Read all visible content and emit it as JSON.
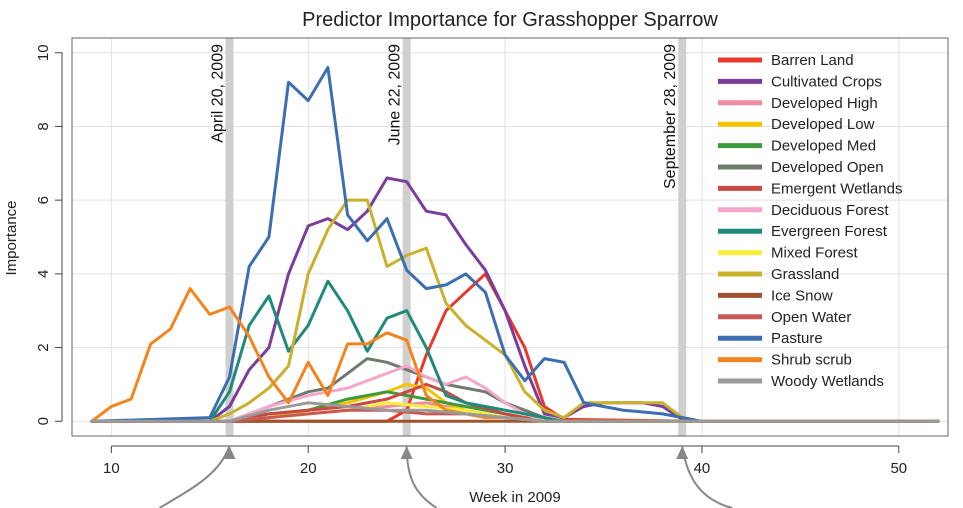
{
  "chart_data": {
    "type": "line",
    "title": "Predictor Importance for Grasshopper Sparrow",
    "xlabel": "Week in 2009",
    "ylabel": "Importance",
    "xlim": [
      8,
      52.5
    ],
    "ylim": [
      -0.4,
      10.4
    ],
    "xticks": [
      10,
      20,
      30,
      40,
      50
    ],
    "yticks": [
      0,
      2,
      4,
      6,
      8,
      10
    ],
    "grid": true,
    "legend_position": "top-right",
    "annotations": [
      {
        "label": "April 20, 2009",
        "x": 16
      },
      {
        "label": "June 22, 2009",
        "x": 25
      },
      {
        "label": "September 28, 2009",
        "x": 39
      }
    ],
    "series": [
      {
        "name": "Barren Land",
        "color": "#e8372b",
        "x": [
          9,
          15,
          16,
          20,
          24,
          25,
          26,
          27,
          28,
          29,
          30,
          31,
          32,
          33,
          40,
          52
        ],
        "y": [
          0,
          0,
          0,
          0,
          0,
          0.3,
          1.8,
          3.0,
          3.5,
          4.0,
          3.0,
          2.0,
          0.4,
          0.05,
          0,
          0
        ]
      },
      {
        "name": "Cultivated Crops",
        "color": "#7b3d9a",
        "x": [
          9,
          15,
          16,
          17,
          18,
          19,
          20,
          21,
          22,
          23,
          24,
          25,
          26,
          27,
          28,
          29,
          30,
          31,
          32,
          33,
          34,
          35,
          36,
          37,
          38,
          39,
          40,
          52
        ],
        "y": [
          0,
          0,
          0.4,
          1.4,
          2.0,
          4.0,
          5.3,
          5.5,
          5.2,
          5.7,
          6.6,
          6.5,
          5.7,
          5.6,
          4.8,
          4.1,
          3.0,
          1.5,
          0.2,
          0.1,
          0.4,
          0.5,
          0.5,
          0.5,
          0.4,
          0.05,
          0,
          0
        ]
      },
      {
        "name": "Developed High",
        "color": "#f08ca0",
        "x": [
          9,
          16,
          18,
          20,
          22,
          24,
          26,
          28,
          30,
          32,
          52
        ],
        "y": [
          0,
          0,
          0.1,
          0.2,
          0.3,
          0.4,
          0.5,
          0.3,
          0.1,
          0,
          0
        ]
      },
      {
        "name": "Developed Low",
        "color": "#f5c400",
        "x": [
          9,
          16,
          18,
          20,
          22,
          24,
          25,
          26,
          27,
          28,
          30,
          32,
          52
        ],
        "y": [
          0,
          0,
          0.1,
          0.3,
          0.5,
          0.8,
          1.0,
          0.9,
          0.5,
          0.3,
          0.1,
          0,
          0
        ]
      },
      {
        "name": "Developed Med",
        "color": "#3d9b3d",
        "x": [
          9,
          16,
          18,
          20,
          22,
          24,
          26,
          28,
          30,
          32,
          52
        ],
        "y": [
          0,
          0,
          0.2,
          0.3,
          0.6,
          0.8,
          0.6,
          0.4,
          0.2,
          0,
          0
        ]
      },
      {
        "name": "Developed Open",
        "color": "#6e7b6e",
        "x": [
          9,
          16,
          18,
          20,
          21,
          22,
          23,
          24,
          25,
          26,
          27,
          28,
          29,
          30,
          31,
          32,
          33,
          52
        ],
        "y": [
          0,
          0,
          0.4,
          0.8,
          0.9,
          1.3,
          1.7,
          1.6,
          1.4,
          1.2,
          1.0,
          0.9,
          0.8,
          0.5,
          0.3,
          0.1,
          0,
          0
        ]
      },
      {
        "name": "Emergent Wetlands",
        "color": "#c84a43",
        "x": [
          9,
          16,
          18,
          20,
          22,
          24,
          25,
          26,
          27,
          28,
          30,
          32,
          52
        ],
        "y": [
          0,
          0,
          0.2,
          0.3,
          0.4,
          0.6,
          0.8,
          1.0,
          0.8,
          0.5,
          0.2,
          0,
          0
        ]
      },
      {
        "name": "Deciduous Forest",
        "color": "#f6a6c8",
        "x": [
          9,
          16,
          18,
          20,
          22,
          23,
          24,
          25,
          26,
          27,
          28,
          29,
          30,
          31,
          32,
          52
        ],
        "y": [
          0,
          0,
          0.4,
          0.7,
          0.9,
          1.1,
          1.3,
          1.5,
          1.2,
          1.0,
          1.2,
          0.9,
          0.5,
          0.2,
          0,
          0
        ]
      },
      {
        "name": "Evergreen Forest",
        "color": "#1f8a7a",
        "x": [
          9,
          15,
          16,
          17,
          18,
          19,
          20,
          21,
          22,
          23,
          24,
          25,
          26,
          27,
          28,
          29,
          30,
          31,
          32,
          33,
          52
        ],
        "y": [
          0,
          0,
          0.8,
          2.6,
          3.4,
          1.9,
          2.6,
          3.8,
          3.0,
          1.9,
          2.8,
          3.0,
          2.0,
          0.7,
          0.5,
          0.4,
          0.3,
          0.2,
          0.1,
          0,
          0
        ]
      },
      {
        "name": "Mixed Forest",
        "color": "#f7ee3a",
        "x": [
          9,
          16,
          18,
          20,
          22,
          24,
          26,
          28,
          30,
          32,
          52
        ],
        "y": [
          0,
          0,
          0.1,
          0.2,
          0.3,
          0.5,
          0.4,
          0.3,
          0.1,
          0,
          0
        ]
      },
      {
        "name": "Grassland",
        "color": "#c9b12c",
        "x": [
          9,
          15,
          16,
          17,
          18,
          19,
          20,
          21,
          22,
          23,
          24,
          25,
          26,
          27,
          28,
          29,
          30,
          31,
          32,
          33,
          34,
          35,
          36,
          37,
          38,
          39,
          40,
          52
        ],
        "y": [
          0,
          0,
          0.2,
          0.5,
          0.9,
          1.5,
          4.0,
          5.2,
          6.0,
          6.0,
          4.2,
          4.5,
          4.7,
          3.2,
          2.6,
          2.2,
          1.8,
          0.8,
          0.3,
          0.1,
          0.5,
          0.5,
          0.5,
          0.5,
          0.5,
          0.1,
          0,
          0
        ]
      },
      {
        "name": "Ice Snow",
        "color": "#a0522d",
        "x": [
          9,
          52
        ],
        "y": [
          0,
          0
        ]
      },
      {
        "name": "Open Water",
        "color": "#c75a55",
        "x": [
          9,
          16,
          18,
          20,
          22,
          24,
          26,
          28,
          30,
          32,
          52
        ],
        "y": [
          0,
          0,
          0.1,
          0.2,
          0.3,
          0.3,
          0.2,
          0.2,
          0.1,
          0,
          0
        ]
      },
      {
        "name": "Pasture",
        "color": "#3b6fb0",
        "x": [
          9,
          15,
          16,
          17,
          18,
          19,
          20,
          21,
          22,
          23,
          24,
          25,
          26,
          27,
          28,
          29,
          30,
          31,
          32,
          33,
          34,
          35,
          36,
          37,
          38,
          39,
          40,
          52
        ],
        "y": [
          0,
          0.1,
          1.2,
          4.2,
          5.0,
          9.2,
          8.7,
          9.6,
          5.6,
          4.9,
          5.5,
          4.1,
          3.6,
          3.7,
          4.0,
          3.5,
          1.8,
          1.1,
          1.7,
          1.6,
          0.5,
          0.4,
          0.3,
          0.25,
          0.2,
          0.1,
          0,
          0
        ]
      },
      {
        "name": "Shrub scrub",
        "color": "#f5841f",
        "x": [
          9,
          10,
          11,
          12,
          13,
          14,
          15,
          16,
          17,
          18,
          19,
          20,
          21,
          22,
          23,
          24,
          25,
          26,
          27,
          28,
          29,
          30,
          31,
          32,
          33,
          52
        ],
        "y": [
          0,
          0.4,
          0.6,
          2.1,
          2.5,
          3.6,
          2.9,
          3.1,
          2.3,
          1.2,
          0.5,
          1.6,
          0.7,
          2.1,
          2.1,
          2.4,
          2.2,
          0.7,
          0.3,
          0.2,
          0.1,
          0.1,
          0.05,
          0,
          0,
          0
        ]
      },
      {
        "name": "Woody Wetlands",
        "color": "#9a9a9a",
        "x": [
          9,
          16,
          18,
          20,
          22,
          24,
          26,
          28,
          30,
          32,
          52
        ],
        "y": [
          0,
          0,
          0.3,
          0.5,
          0.4,
          0.3,
          0.3,
          0.2,
          0.1,
          0,
          0
        ]
      }
    ]
  }
}
